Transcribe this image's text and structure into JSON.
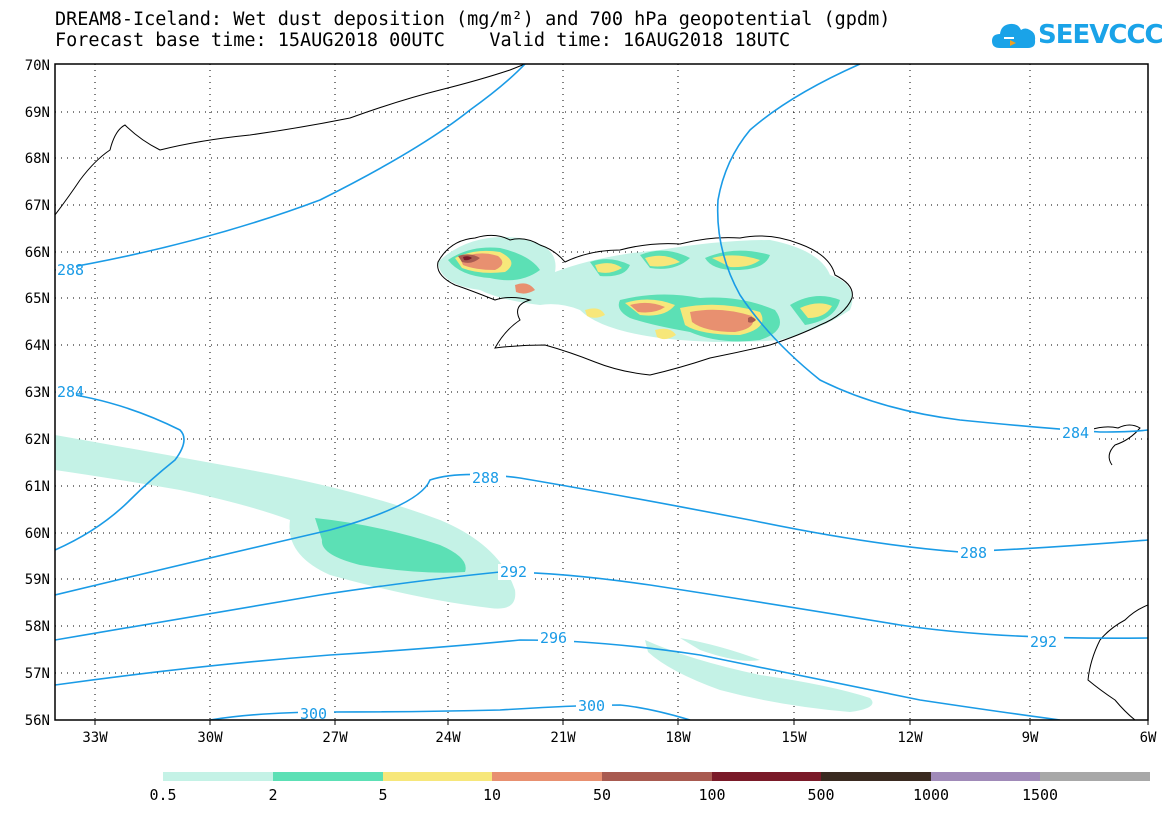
{
  "title": {
    "line1": "DREAM8-Iceland: Wet dust deposition (mg/m²) and 700 hPa geopotential (gpdm)",
    "line2": "Forecast base time: 15AUG2018 00UTC    Valid time: 16AUG2018 18UTC"
  },
  "logo": {
    "text": "SEEVCCC",
    "icon": "cloud-icon",
    "color": "#1aa3e8"
  },
  "map": {
    "lat_labels": [
      "70N",
      "69N",
      "68N",
      "67N",
      "66N",
      "65N",
      "64N",
      "63N",
      "62N",
      "61N",
      "60N",
      "59N",
      "58N",
      "57N",
      "56N"
    ],
    "lon_labels": [
      "33W",
      "30W",
      "27W",
      "24W",
      "21W",
      "18W",
      "15W",
      "12W",
      "9W",
      "6W"
    ],
    "contour_labels": [
      "288",
      "284",
      "284",
      "288",
      "288",
      "292",
      "292",
      "296",
      "300",
      "300"
    ],
    "contour_color": "#1a9be6"
  },
  "legend": {
    "labels": [
      "0.5",
      "2",
      "5",
      "10",
      "50",
      "100",
      "500",
      "1000",
      "1500"
    ],
    "colors": [
      "#c4f2e6",
      "#5ce0b5",
      "#f7e77a",
      "#e89070",
      "#a85a50",
      "#7a1a28",
      "#3a2a20",
      "#a08ab8",
      "#a8a8a8"
    ]
  }
}
